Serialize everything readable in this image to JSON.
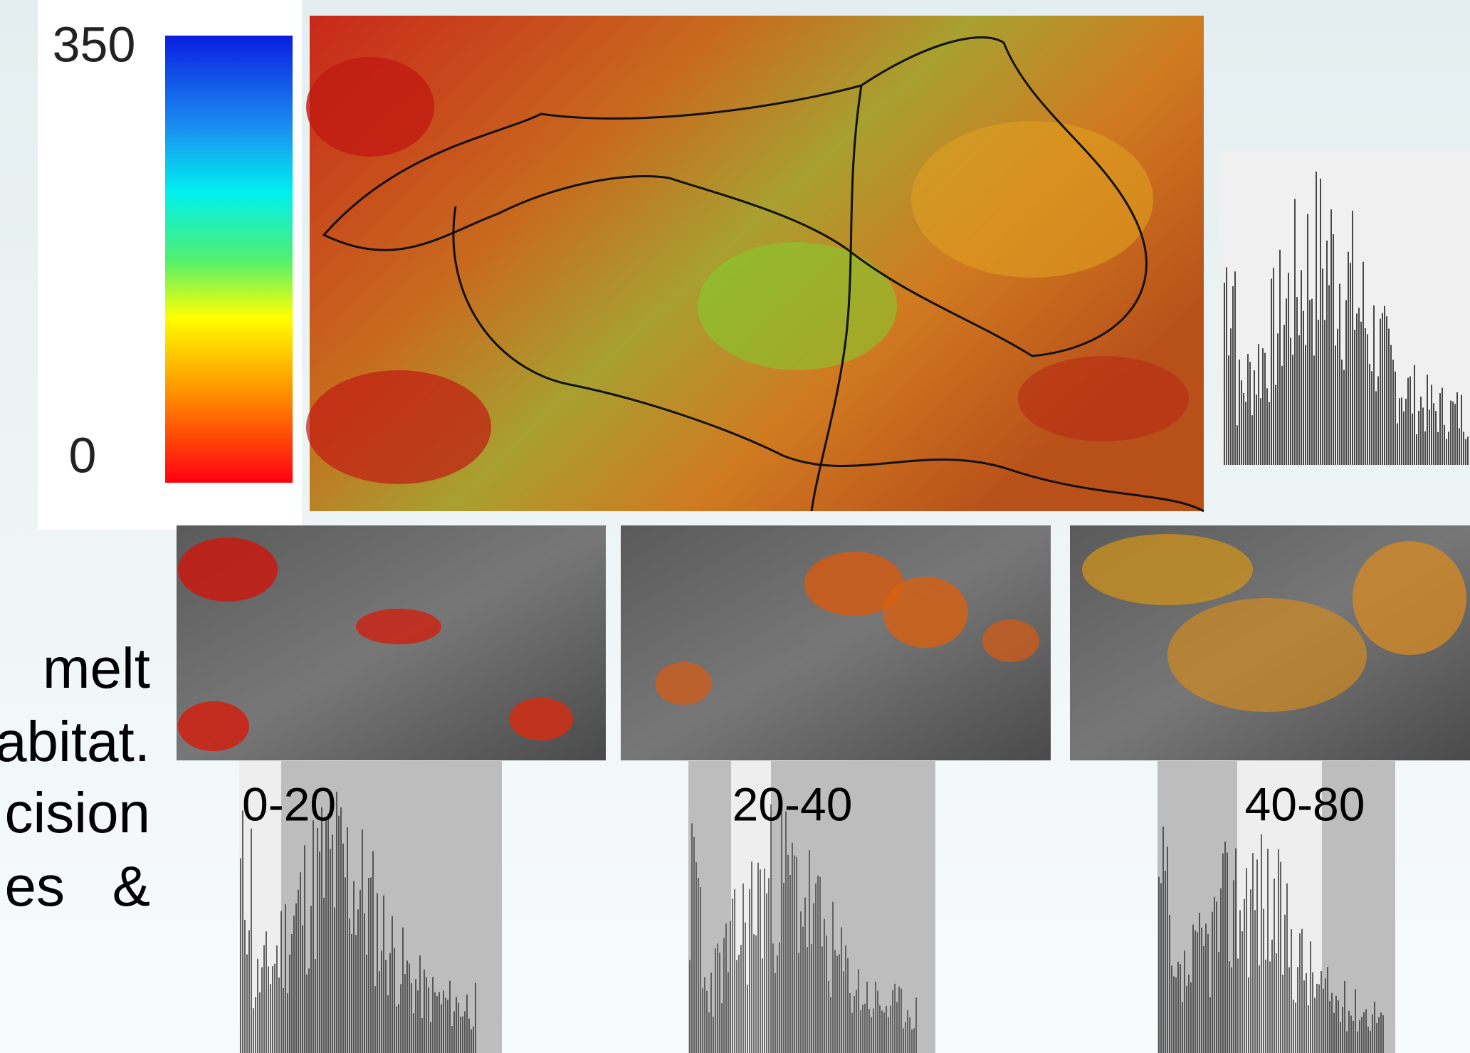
{
  "colorbar": {
    "max_label": "350",
    "min_label": "0"
  },
  "body_text": {
    "lines": [
      "melt",
      "abitat.",
      "cision",
      "es   &"
    ]
  },
  "panels": [
    {
      "label": "0-20"
    },
    {
      "label": "20-40"
    },
    {
      "label": "40-80"
    }
  ]
}
